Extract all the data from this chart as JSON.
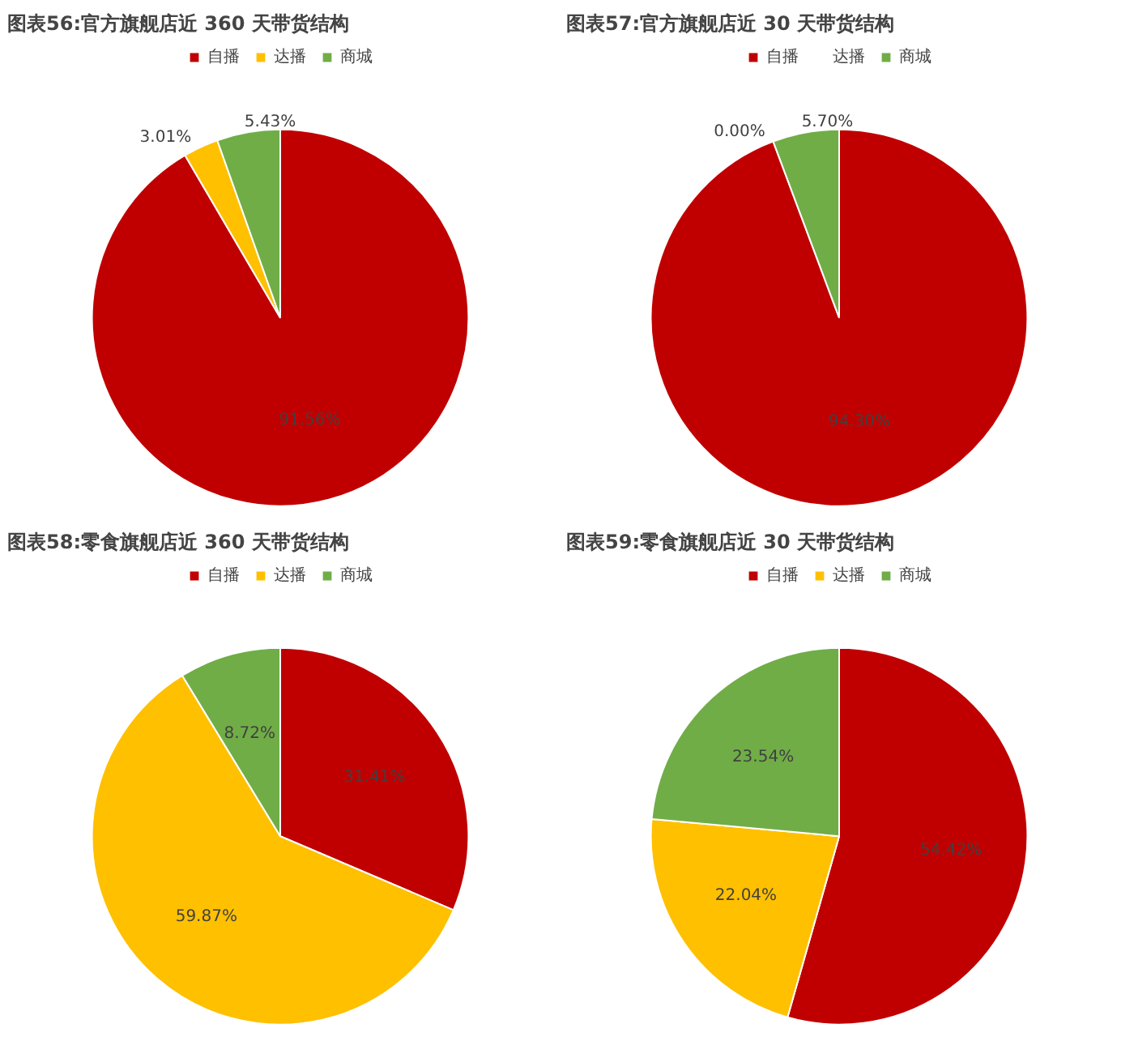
{
  "chart_data": [
    {
      "type": "pie",
      "title": "图表56:官方旗舰店近 360 天带货结构",
      "categories": [
        "自播",
        "达播",
        "商城"
      ],
      "values": [
        91.56,
        3.01,
        5.43
      ],
      "value_labels": [
        "91.56%",
        "3.01%",
        "5.43%"
      ],
      "colors": [
        "#c00000",
        "#ffc000",
        "#70ad47"
      ],
      "legend": "top"
    },
    {
      "type": "pie",
      "title": "图表57:官方旗舰店近 30 天带货结构",
      "categories": [
        "自播",
        "达播",
        "商城"
      ],
      "values": [
        94.3,
        0.0,
        5.7
      ],
      "value_labels": [
        "94.30%",
        "0.00%",
        "5.70%"
      ],
      "colors": [
        "#c00000",
        "#ffc000",
        "#70ad47"
      ],
      "legend": "top"
    },
    {
      "type": "pie",
      "title": "图表58:零食旗舰店近 360 天带货结构",
      "categories": [
        "自播",
        "达播",
        "商城"
      ],
      "values": [
        31.41,
        59.87,
        8.72
      ],
      "value_labels": [
        "31.41%",
        "59.87%",
        "8.72%"
      ],
      "colors": [
        "#c00000",
        "#ffc000",
        "#70ad47"
      ],
      "legend": "top"
    },
    {
      "type": "pie",
      "title": "图表59:零食旗舰店近 30 天带货结构",
      "categories": [
        "自播",
        "达播",
        "商城"
      ],
      "values": [
        54.42,
        22.04,
        23.54
      ],
      "value_labels": [
        "54.42%",
        "22.04%",
        "23.54%"
      ],
      "colors": [
        "#c00000",
        "#ffc000",
        "#70ad47"
      ],
      "legend": "top"
    }
  ]
}
